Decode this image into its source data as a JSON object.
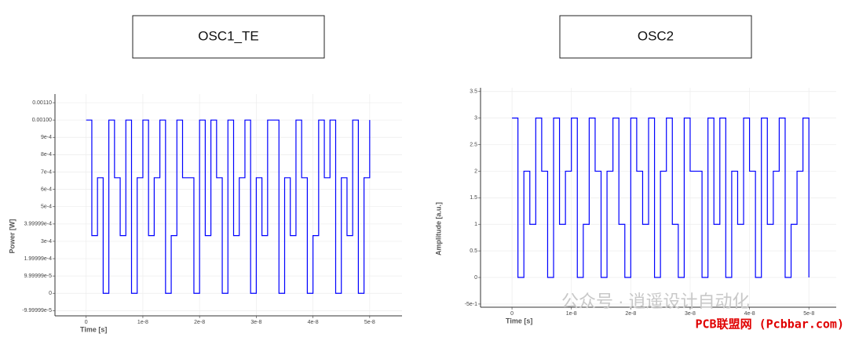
{
  "chart_data": [
    {
      "type": "line",
      "title": "OSC1_TE",
      "xlabel": "Time [s]",
      "ylabel": "Power [W]",
      "color": "#0000ff",
      "grid": true,
      "x": [
        0,
        1e-09,
        2e-09,
        3e-09,
        4e-09,
        5e-09,
        6e-09,
        7e-09,
        8e-09,
        9e-09,
        1e-08,
        1.1e-08,
        1.2e-08,
        1.3e-08,
        1.4e-08,
        1.5e-08,
        1.6e-08,
        1.7e-08,
        1.8e-08,
        1.9e-08,
        2e-08,
        2.1e-08,
        2.2e-08,
        2.3e-08,
        2.4e-08,
        2.5e-08,
        2.6e-08,
        2.7e-08,
        2.8e-08,
        2.9e-08,
        3e-08,
        3.1e-08,
        3.2e-08,
        3.3e-08,
        3.4e-08,
        3.5e-08,
        3.6e-08,
        3.7e-08,
        3.8e-08,
        3.9e-08,
        4e-08,
        4.1e-08,
        4.2e-08,
        4.3e-08,
        4.4e-08,
        4.5e-08,
        4.6e-08,
        4.7e-08,
        4.8e-08,
        4.9e-08,
        5e-08
      ],
      "values": [
        0.001,
        0.000333,
        0.000667,
        0,
        0.001,
        0.000667,
        0.000333,
        0.001,
        0,
        0.000667,
        0.001,
        0.000333,
        0.000667,
        0.001,
        0,
        0.000333,
        0.001,
        0.000667,
        0.000667,
        0,
        0.001,
        0.000333,
        0.001,
        0.000667,
        0,
        0.001,
        0.000333,
        0.000667,
        0.001,
        0,
        0.000667,
        0.000333,
        0.001,
        0.001,
        0,
        0.000667,
        0.000333,
        0.001,
        0.000667,
        0,
        0.000333,
        0.001,
        0.000667,
        0.001,
        0,
        0.000667,
        0.000333,
        0.001,
        0,
        0.000667,
        0.001
      ],
      "xlim": [
        -5.5e-09,
        5.57e-08
      ],
      "xticks": [
        0,
        1e-08,
        2e-08,
        3e-08,
        4e-08,
        5e-08
      ],
      "ylim": [
        -0.00013,
        0.00115
      ],
      "yticks": [
        {
          "value": -0.0001,
          "label": "-9.99999e-5"
        },
        0,
        {
          "value": 0.0001,
          "label": "9.99999e-5"
        },
        {
          "value": 0.0002,
          "label": "1.99999e-4"
        },
        {
          "value": 0.0003,
          "label": "3e-4"
        },
        {
          "value": 0.0004,
          "label": "3.99999e-4"
        },
        {
          "value": 0.0005,
          "label": "5e-4"
        },
        {
          "value": 0.0006,
          "label": "6e-4"
        },
        {
          "value": 0.0007,
          "label": "7e-4"
        },
        {
          "value": 0.0008,
          "label": "8e-4"
        },
        {
          "value": 0.0009,
          "label": "9e-4"
        },
        {
          "value": 0.001,
          "label": "0.00100"
        },
        {
          "value": 0.0011,
          "label": "0.00110"
        }
      ]
    },
    {
      "type": "line",
      "title": "OSC2",
      "xlabel": "Time [s]",
      "ylabel": "Amplitude [a.u.]",
      "color": "#0000ff",
      "grid": true,
      "x": [
        0,
        1e-09,
        2e-09,
        3e-09,
        4e-09,
        5e-09,
        6e-09,
        7e-09,
        8e-09,
        9e-09,
        1e-08,
        1.1e-08,
        1.2e-08,
        1.3e-08,
        1.4e-08,
        1.5e-08,
        1.6e-08,
        1.7e-08,
        1.8e-08,
        1.9e-08,
        2e-08,
        2.1e-08,
        2.2e-08,
        2.3e-08,
        2.4e-08,
        2.5e-08,
        2.6e-08,
        2.7e-08,
        2.8e-08,
        2.9e-08,
        3e-08,
        3.1e-08,
        3.2e-08,
        3.3e-08,
        3.4e-08,
        3.5e-08,
        3.6e-08,
        3.7e-08,
        3.8e-08,
        3.9e-08,
        4e-08,
        4.1e-08,
        4.2e-08,
        4.3e-08,
        4.4e-08,
        4.5e-08,
        4.6e-08,
        4.7e-08,
        4.8e-08,
        4.9e-08,
        5e-08
      ],
      "values": [
        3,
        0,
        2,
        1,
        3,
        2,
        0,
        3,
        1,
        2,
        3,
        0,
        1,
        3,
        2,
        0,
        2,
        3,
        1,
        0,
        3,
        2,
        1,
        3,
        0,
        2,
        3,
        1,
        0,
        3,
        2,
        2,
        0,
        3,
        1,
        3,
        0,
        2,
        1,
        3,
        2,
        0,
        3,
        1,
        2,
        3,
        0,
        1,
        2,
        3,
        0
      ],
      "xlim": [
        -5.3e-09,
        5.46e-08
      ],
      "xticks": [
        0,
        1e-08,
        2e-08,
        3e-08,
        4e-08,
        5e-08
      ],
      "ylim": [
        -0.56,
        3.57
      ],
      "yticks": [
        {
          "value": -0.5,
          "label": "-5e-1"
        },
        0,
        0.5,
        1,
        1.5,
        2,
        2.5,
        3,
        3.5
      ]
    }
  ],
  "watermark": {
    "wechat": "公众号 · 逍遥设计自动化",
    "site": "PCB联盟网 (Pcbbar.com)"
  }
}
